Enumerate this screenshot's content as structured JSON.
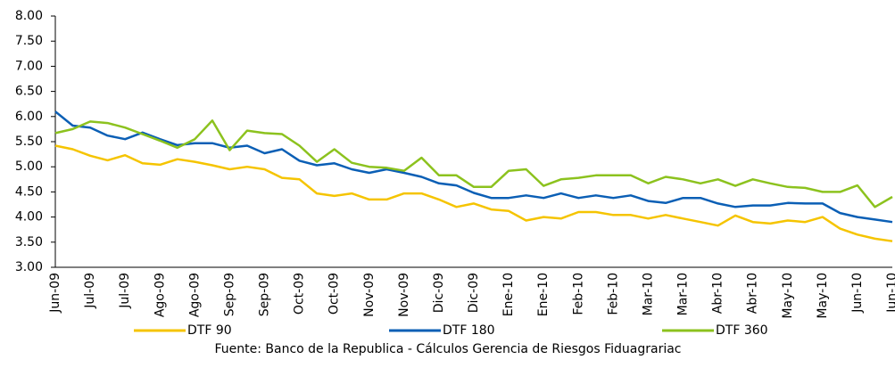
{
  "chart_data": {
    "type": "line",
    "source": "Fuente: Banco de la Republica - Cálculos Gerencia de Riesgos Fiduagrariac",
    "categories": [
      "Jun-09",
      null,
      "Jul-09",
      null,
      "Jul-09",
      null,
      "Ago-09",
      null,
      "Ago-09",
      null,
      "Sep-09",
      null,
      "Sep-09",
      null,
      "Oct-09",
      null,
      "Oct-09",
      null,
      "Nov-09",
      null,
      "Nov-09",
      null,
      "Dic-09",
      null,
      "Dic-09",
      null,
      "Ene-10",
      null,
      "Ene-10",
      null,
      "Feb-10",
      null,
      "Feb-10",
      null,
      "Mar-10",
      null,
      "Mar-10",
      null,
      "Abr-10",
      null,
      "Abr-10",
      null,
      "May-10",
      null,
      "May-10",
      null,
      "Jun-10",
      null,
      "Jun-10"
    ],
    "series": [
      {
        "name": "DTF 90",
        "color": "#f5c400",
        "values": [
          5.42,
          5.35,
          5.22,
          5.13,
          5.23,
          5.07,
          5.04,
          5.15,
          5.1,
          5.03,
          4.95,
          5.0,
          4.95,
          4.78,
          4.75,
          4.47,
          4.42,
          4.47,
          4.35,
          4.35,
          4.47,
          4.47,
          4.35,
          4.2,
          4.27,
          4.15,
          4.12,
          3.93,
          4.0,
          3.97,
          4.1,
          4.1,
          4.04,
          4.04,
          3.97,
          4.04,
          3.97,
          3.9,
          3.83,
          4.03,
          3.9,
          3.87,
          3.93,
          3.9,
          4.0,
          3.77,
          3.65,
          3.57,
          3.52
        ]
      },
      {
        "name": "DTF 180",
        "color": "#0b5fb5",
        "values": [
          6.1,
          5.82,
          5.78,
          5.62,
          5.55,
          5.68,
          5.55,
          5.43,
          5.47,
          5.47,
          5.38,
          5.42,
          5.27,
          5.35,
          5.12,
          5.03,
          5.07,
          4.95,
          4.88,
          4.95,
          4.88,
          4.8,
          4.67,
          4.63,
          4.48,
          4.38,
          4.38,
          4.43,
          4.38,
          4.47,
          4.38,
          4.43,
          4.38,
          4.43,
          4.32,
          4.28,
          4.38,
          4.38,
          4.27,
          4.2,
          4.23,
          4.23,
          4.28,
          4.27,
          4.27,
          4.08,
          4.0,
          3.95,
          3.9
        ]
      },
      {
        "name": "DTF 360",
        "color": "#8cc21e",
        "values": [
          5.67,
          5.75,
          5.9,
          5.87,
          5.78,
          5.65,
          5.52,
          5.38,
          5.55,
          5.92,
          5.33,
          5.72,
          5.67,
          5.65,
          5.42,
          5.1,
          5.35,
          5.08,
          5.0,
          4.98,
          4.92,
          5.18,
          4.83,
          4.83,
          4.6,
          4.6,
          4.92,
          4.95,
          4.62,
          4.75,
          4.78,
          4.83,
          4.83,
          4.83,
          4.67,
          4.8,
          4.75,
          4.67,
          4.75,
          4.62,
          4.75,
          4.67,
          4.6,
          4.58,
          4.5,
          4.5,
          4.63,
          4.2,
          4.4
        ]
      }
    ],
    "ylim": [
      3,
      8
    ],
    "yticks": [
      {
        "value": 3,
        "label": "3.00"
      },
      {
        "value": 3.5,
        "label": "3.50"
      },
      {
        "value": 4,
        "label": "4.00"
      },
      {
        "value": 4.5,
        "label": "4.50"
      },
      {
        "value": 5,
        "label": "5.00"
      },
      {
        "value": 5.5,
        "label": "5.50"
      },
      {
        "value": 6,
        "label": "6.00"
      },
      {
        "value": 6.5,
        "label": "6.50"
      },
      {
        "value": 7,
        "label": "7.00"
      },
      {
        "value": 7.5,
        "label": "7.50"
      },
      {
        "value": 8,
        "label": "8.00"
      }
    ],
    "grid": false
  }
}
